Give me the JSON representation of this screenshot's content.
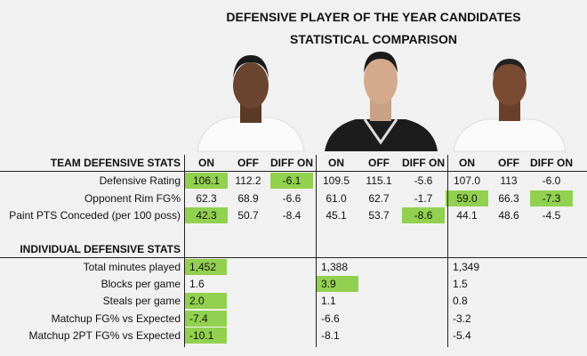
{
  "title": [
    "DEFENSIVE PLAYER OF THE YEAR CANDIDATES",
    "STATISTICAL COMPARISON"
  ],
  "highlight_color": "#92d050",
  "team_section": {
    "heading": "TEAM DEFENSIVE STATS",
    "columns": [
      "ON",
      "OFF",
      "DIFF ON",
      "ON",
      "OFF",
      "DIFF ON",
      "ON",
      "OFF",
      "DIFF ON"
    ],
    "rows": [
      {
        "label": "Defensive Rating",
        "values": [
          "106.1",
          "112.2",
          "-6.1",
          "109.5",
          "115.1",
          "-5.6",
          "107.0",
          "113",
          "-6.0"
        ],
        "highlight": [
          0,
          2
        ]
      },
      {
        "label": "Opponent Rim FG%",
        "values": [
          "62.3",
          "68.9",
          "-6.6",
          "61.0",
          "62.7",
          "-1.7",
          "59.0",
          "66.3",
          "-7.3"
        ],
        "highlight": [
          6,
          8
        ]
      },
      {
        "label": "Paint PTS Conceded (per 100 poss)",
        "values": [
          "42.3",
          "50.7",
          "-8.4",
          "45.1",
          "53.7",
          "-8.6",
          "44.1",
          "48.6",
          "-4.5"
        ],
        "highlight": [
          0,
          5
        ]
      }
    ]
  },
  "individual_section": {
    "heading": "INDIVIDUAL DEFENSIVE STATS",
    "rows": [
      {
        "label": "Total minutes played",
        "values": [
          "1,452",
          "1,388",
          "1,349"
        ],
        "highlight": [
          0
        ]
      },
      {
        "label": "Blocks per game",
        "values": [
          "1.6",
          "3.9",
          "1.5"
        ],
        "highlight": [
          1
        ]
      },
      {
        "label": "Steals per game",
        "values": [
          "2.0",
          "1.1",
          "0.8"
        ],
        "highlight": [
          0
        ]
      },
      {
        "label": "Matchup FG% vs Expected",
        "values": [
          "-7.4",
          "-6.6",
          "-3.2"
        ],
        "highlight": [
          0
        ]
      },
      {
        "label": "Matchup 2PT FG% vs Expected",
        "values": [
          "-10.1",
          "-8.1",
          "-5.4"
        ],
        "highlight": [
          0
        ]
      }
    ]
  }
}
